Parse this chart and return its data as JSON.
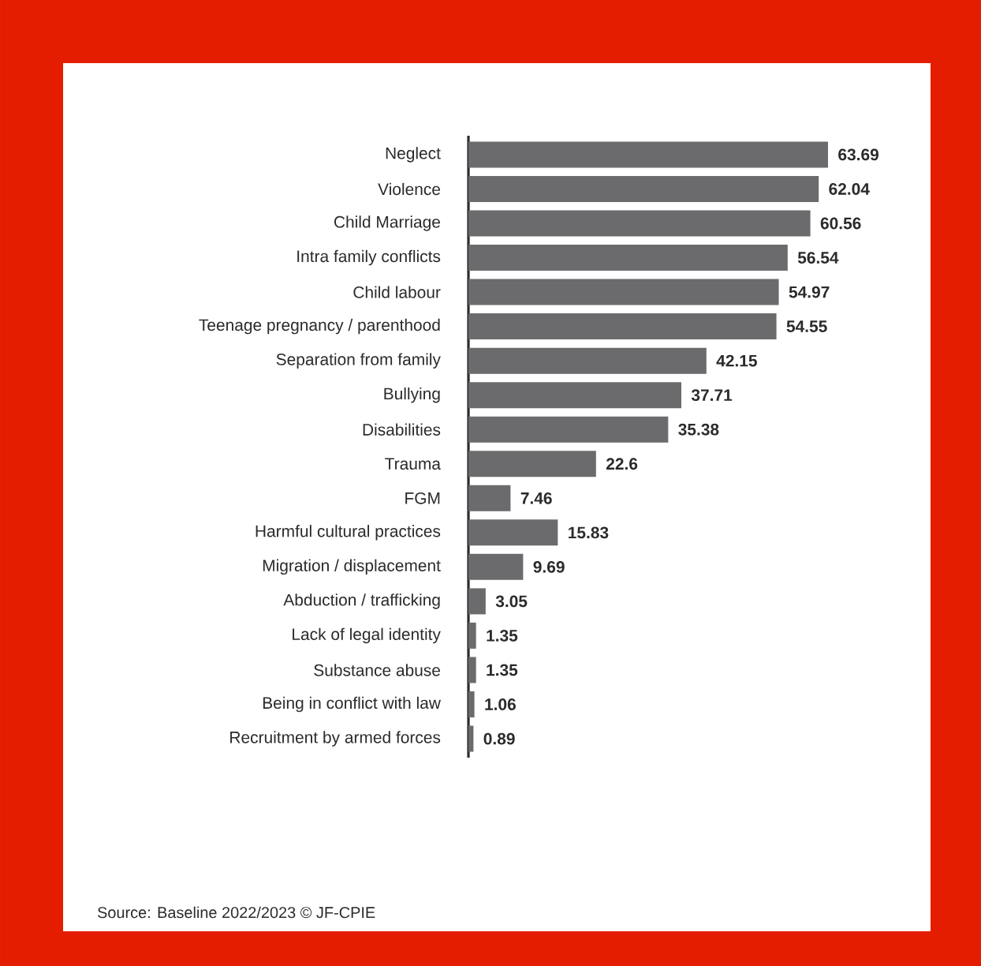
{
  "chart_data": {
    "type": "bar",
    "orientation": "horizontal",
    "data_labels": true,
    "categories": [
      "Neglect",
      "Violence",
      "Child Marriage",
      "Intra family conflicts",
      "Child labour",
      "Teenage pregnancy / parenthood",
      "Separation from family",
      "Bullying",
      "Disabilities",
      "Trauma",
      "FGM",
      "Harmful cultural practices",
      "Migration / displacement",
      "Abduction / trafficking",
      "Lack of legal identity",
      "Substance abuse",
      "Being in conflict with law",
      "Recruitment by armed forces"
    ],
    "values": [
      63.69,
      62.04,
      60.56,
      56.54,
      54.97,
      54.55,
      42.15,
      37.71,
      35.38,
      22.6,
      7.46,
      15.83,
      9.69,
      3.05,
      1.35,
      1.35,
      1.06,
      0.89
    ],
    "color": "#6b6b6d",
    "annotations": [
      "Source: Baseline 2022/2023 © JF-CPIE"
    ]
  }
}
